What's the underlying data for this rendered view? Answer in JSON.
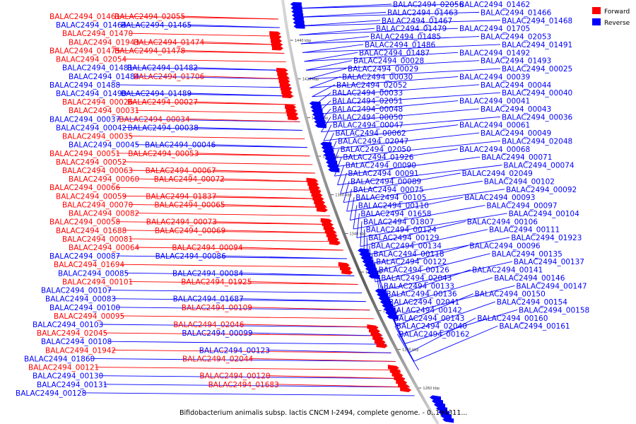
{
  "caption": "Bifidobacterium animalis subsp. lactis CNCM I-2494, complete genome. - 0..194311...",
  "legend": {
    "forward_label": "Forward",
    "reverse_label": "Reverse",
    "forward_color": "#ff0000",
    "reverse_color": "#0000ff",
    "position": "top-right"
  },
  "colors": {
    "backbone": "#888888",
    "leader_forward": "#ff0000",
    "leader_reverse": "#0000ff"
  },
  "ticks": [
    "1440 kbp",
    "1420 kbp",
    "1400 kbp",
    "1380 kbp",
    "1360 kbp",
    "1340 kbp",
    "1320 kbp",
    "1300 kbp",
    "1280 kbp",
    "1260 kbp"
  ],
  "labels_left": [
    {
      "t": "BALAC2494_01461",
      "s": "forward"
    },
    {
      "t": "BALAC2494_02055",
      "s": "forward"
    },
    {
      "t": "BALAC2494_01464",
      "s": "reverse"
    },
    {
      "t": "BALAC2494_01465",
      "s": "reverse"
    },
    {
      "t": "BALAC2494_01470",
      "s": "forward"
    },
    {
      "t": "BALAC2494_01943",
      "s": "forward"
    },
    {
      "t": "BALAC2494_01474",
      "s": "forward"
    },
    {
      "t": "BALAC2494_01475",
      "s": "forward"
    },
    {
      "t": "BALAC2494_01478",
      "s": "forward"
    },
    {
      "t": "BALAC2494_02054",
      "s": "forward"
    },
    {
      "t": "BALAC2494_01481",
      "s": "reverse"
    },
    {
      "t": "BALAC2494_01482",
      "s": "reverse"
    },
    {
      "t": "BALAC2494_01484",
      "s": "reverse"
    },
    {
      "t": "BALAC2494_01706",
      "s": "forward"
    },
    {
      "t": "BALAC2494_01488",
      "s": "reverse"
    },
    {
      "t": "BALAC2494_01490",
      "s": "reverse"
    },
    {
      "t": "BALAC2494_01489",
      "s": "reverse"
    },
    {
      "t": "BALAC2494_00026",
      "s": "forward"
    },
    {
      "t": "BALAC2494_00027",
      "s": "forward"
    },
    {
      "t": "BALAC2494_00031",
      "s": "forward"
    },
    {
      "t": "BALAC2494_00037",
      "s": "reverse"
    },
    {
      "t": "BALAC2494_00034",
      "s": "forward"
    },
    {
      "t": "BALAC2494_00042",
      "s": "reverse"
    },
    {
      "t": "BALAC2494_00038",
      "s": "reverse"
    },
    {
      "t": "BALAC2494_00035",
      "s": "forward"
    },
    {
      "t": "BALAC2494_00045",
      "s": "reverse"
    },
    {
      "t": "BALAC2494_00046",
      "s": "reverse"
    },
    {
      "t": "BALAC2494_00051",
      "s": "forward"
    },
    {
      "t": "BALAC2494_00053",
      "s": "forward"
    },
    {
      "t": "BALAC2494_00052",
      "s": "forward"
    },
    {
      "t": "BALAC2494_00063",
      "s": "forward"
    },
    {
      "t": "BALAC2494_00067",
      "s": "forward"
    },
    {
      "t": "BALAC2494_00060",
      "s": "forward"
    },
    {
      "t": "BALAC2494_00072",
      "s": "forward"
    },
    {
      "t": "BALAC2494_00066",
      "s": "forward"
    },
    {
      "t": "BALAC2494_00059",
      "s": "forward"
    },
    {
      "t": "BALAC2494_01837",
      "s": "forward"
    },
    {
      "t": "BALAC2494_00070",
      "s": "forward"
    },
    {
      "t": "BALAC2494_00065",
      "s": "forward"
    },
    {
      "t": "BALAC2494_00082",
      "s": "forward"
    },
    {
      "t": "BALAC2494_00058",
      "s": "forward"
    },
    {
      "t": "BALAC2494_00073",
      "s": "forward"
    },
    {
      "t": "BALAC2494_01688",
      "s": "forward"
    },
    {
      "t": "BALAC2494_00069",
      "s": "forward"
    },
    {
      "t": "BALAC2494_00081",
      "s": "forward"
    },
    {
      "t": "BALAC2494_00064",
      "s": "forward"
    },
    {
      "t": "BALAC2494_00094",
      "s": "forward"
    },
    {
      "t": "BALAC2494_00087",
      "s": "reverse"
    },
    {
      "t": "BALAC2494_00086",
      "s": "reverse"
    },
    {
      "t": "BALAC2494_01694",
      "s": "forward"
    },
    {
      "t": "BALAC2494_00085",
      "s": "reverse"
    },
    {
      "t": "BALAC2494_00084",
      "s": "reverse"
    },
    {
      "t": "BALAC2494_00101",
      "s": "forward"
    },
    {
      "t": "BALAC2494_01925",
      "s": "forward"
    },
    {
      "t": "BALAC2494_00107",
      "s": "reverse"
    },
    {
      "t": "BALAC2494_00083",
      "s": "reverse"
    },
    {
      "t": "BALAC2494_01687",
      "s": "reverse"
    },
    {
      "t": "BALAC2494_00100",
      "s": "reverse"
    },
    {
      "t": "BALAC2494_00109",
      "s": "forward"
    },
    {
      "t": "BALAC2494_00095",
      "s": "forward"
    },
    {
      "t": "BALAC2494_00103",
      "s": "reverse"
    },
    {
      "t": "BALAC2494_02046",
      "s": "forward"
    },
    {
      "t": "BALAC2494_02045",
      "s": "forward"
    },
    {
      "t": "BALAC2494_00099",
      "s": "reverse"
    },
    {
      "t": "BALAC2494_00108",
      "s": "reverse"
    },
    {
      "t": "BALAC2494_01942",
      "s": "forward"
    },
    {
      "t": "BALAC2494_00123",
      "s": "reverse"
    },
    {
      "t": "BALAC2494_01860",
      "s": "reverse"
    },
    {
      "t": "BALAC2494_02044",
      "s": "forward"
    },
    {
      "t": "BALAC2494_00121",
      "s": "forward"
    },
    {
      "t": "BALAC2494_00130",
      "s": "reverse"
    },
    {
      "t": "BALAC2494_00120",
      "s": "forward"
    },
    {
      "t": "BALAC2494_00131",
      "s": "reverse"
    },
    {
      "t": "BALAC2494_01683",
      "s": "forward"
    },
    {
      "t": "BALAC2494_00128",
      "s": "reverse"
    }
  ],
  "labels_right": [
    {
      "t": "BALAC2494_02056",
      "s": "reverse"
    },
    {
      "t": "BALAC2494_01462",
      "s": "reverse"
    },
    {
      "t": "BALAC2494_01463",
      "s": "reverse"
    },
    {
      "t": "BALAC2494_01466",
      "s": "reverse"
    },
    {
      "t": "BALAC2494_01467",
      "s": "reverse"
    },
    {
      "t": "BALAC2494_01468",
      "s": "reverse"
    },
    {
      "t": "BALAC2494_01479",
      "s": "reverse"
    },
    {
      "t": "BALAC2494_01705",
      "s": "reverse"
    },
    {
      "t": "BALAC2494_01485",
      "s": "reverse"
    },
    {
      "t": "BALAC2494_02053",
      "s": "reverse"
    },
    {
      "t": "BALAC2494_01486",
      "s": "reverse"
    },
    {
      "t": "BALAC2494_01491",
      "s": "reverse"
    },
    {
      "t": "BALAC2494_01487",
      "s": "reverse"
    },
    {
      "t": "BALAC2494_01492",
      "s": "reverse"
    },
    {
      "t": "BALAC2494_00028",
      "s": "reverse"
    },
    {
      "t": "BALAC2494_01493",
      "s": "reverse"
    },
    {
      "t": "BALAC2494_00029",
      "s": "reverse"
    },
    {
      "t": "BALAC2494_00025",
      "s": "reverse"
    },
    {
      "t": "BALAC2494_00030",
      "s": "reverse"
    },
    {
      "t": "BALAC2494_00039",
      "s": "reverse"
    },
    {
      "t": "BALAC2494_02052",
      "s": "reverse"
    },
    {
      "t": "BALAC2494_00044",
      "s": "reverse"
    },
    {
      "t": "BALAC2494_00033",
      "s": "reverse"
    },
    {
      "t": "BALAC2494_00040",
      "s": "reverse"
    },
    {
      "t": "BALAC2494_02051",
      "s": "reverse"
    },
    {
      "t": "BALAC2494_00041",
      "s": "reverse"
    },
    {
      "t": "BALAC2494_00048",
      "s": "reverse"
    },
    {
      "t": "BALAC2494_00043",
      "s": "reverse"
    },
    {
      "t": "BALAC2494_00050",
      "s": "reverse"
    },
    {
      "t": "BALAC2494_00036",
      "s": "reverse"
    },
    {
      "t": "BALAC2494_00047",
      "s": "reverse"
    },
    {
      "t": "BALAC2494_00061",
      "s": "reverse"
    },
    {
      "t": "BALAC2494_00062",
      "s": "reverse"
    },
    {
      "t": "BALAC2494_00049",
      "s": "reverse"
    },
    {
      "t": "BALAC2494_02047",
      "s": "reverse"
    },
    {
      "t": "BALAC2494_02048",
      "s": "reverse"
    },
    {
      "t": "BALAC2494_02050",
      "s": "reverse"
    },
    {
      "t": "BALAC2494_00068",
      "s": "reverse"
    },
    {
      "t": "BALAC2494_01926",
      "s": "reverse"
    },
    {
      "t": "BALAC2494_00071",
      "s": "reverse"
    },
    {
      "t": "BALAC2494_00090",
      "s": "reverse"
    },
    {
      "t": "BALAC2494_00074",
      "s": "reverse"
    },
    {
      "t": "BALAC2494_00091",
      "s": "reverse"
    },
    {
      "t": "BALAC2494_02049",
      "s": "reverse"
    },
    {
      "t": "BALAC2494_00089",
      "s": "reverse"
    },
    {
      "t": "BALAC2494_00102",
      "s": "reverse"
    },
    {
      "t": "BALAC2494_00075",
      "s": "reverse"
    },
    {
      "t": "BALAC2494_00092",
      "s": "reverse"
    },
    {
      "t": "BALAC2494_00105",
      "s": "reverse"
    },
    {
      "t": "BALAC2494_00093",
      "s": "reverse"
    },
    {
      "t": "BALAC2494_00110",
      "s": "reverse"
    },
    {
      "t": "BALAC2494_00097",
      "s": "reverse"
    },
    {
      "t": "BALAC2494_01658",
      "s": "reverse"
    },
    {
      "t": "BALAC2494_00104",
      "s": "reverse"
    },
    {
      "t": "BALAC2494_01807",
      "s": "reverse"
    },
    {
      "t": "BALAC2494_00106",
      "s": "reverse"
    },
    {
      "t": "BALAC2494_00124",
      "s": "reverse"
    },
    {
      "t": "BALAC2494_00111",
      "s": "reverse"
    },
    {
      "t": "BALAC2494_00129",
      "s": "reverse"
    },
    {
      "t": "BALAC2494_01923",
      "s": "reverse"
    },
    {
      "t": "BALAC2494_00134",
      "s": "reverse"
    },
    {
      "t": "BALAC2494_00096",
      "s": "reverse"
    },
    {
      "t": "BALAC2494_00118",
      "s": "reverse"
    },
    {
      "t": "BALAC2494_00135",
      "s": "reverse"
    },
    {
      "t": "BALAC2494_00122",
      "s": "reverse"
    },
    {
      "t": "BALAC2494_00137",
      "s": "reverse"
    },
    {
      "t": "BALAC2494_00126",
      "s": "reverse"
    },
    {
      "t": "BALAC2494_00141",
      "s": "reverse"
    },
    {
      "t": "BALAC2494_02043",
      "s": "reverse"
    },
    {
      "t": "BALAC2494_00146",
      "s": "reverse"
    },
    {
      "t": "BALAC2494_00133",
      "s": "reverse"
    },
    {
      "t": "BALAC2494_00147",
      "s": "reverse"
    },
    {
      "t": "BALAC2494_00136",
      "s": "reverse"
    },
    {
      "t": "BALAC2494_00150",
      "s": "reverse"
    },
    {
      "t": "BALAC2494_02041",
      "s": "reverse"
    },
    {
      "t": "BALAC2494_00154",
      "s": "reverse"
    },
    {
      "t": "BALAC2494_00142",
      "s": "reverse"
    },
    {
      "t": "BALAC2494_00158",
      "s": "reverse"
    },
    {
      "t": "BALAC2494_00143",
      "s": "reverse"
    },
    {
      "t": "BALAC2494_00160",
      "s": "reverse"
    },
    {
      "t": "BALAC2494_02040",
      "s": "reverse"
    },
    {
      "t": "BALAC2494_00161",
      "s": "reverse"
    },
    {
      "t": "BALAC2494_00162",
      "s": "reverse"
    }
  ]
}
